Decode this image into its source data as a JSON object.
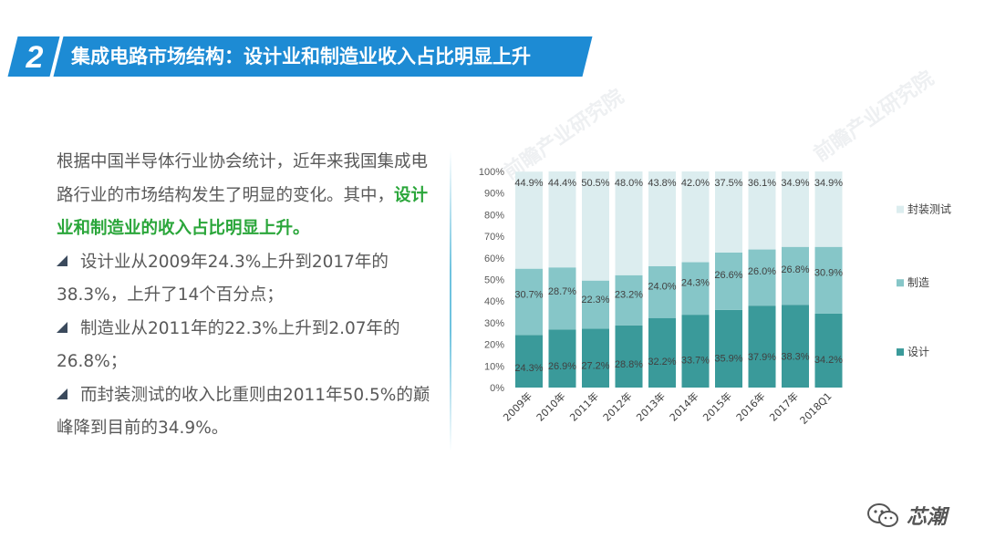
{
  "header": {
    "number": "2",
    "title": "集成电路市场结构：设计业和制造业收入占比明显上升"
  },
  "body": {
    "intro": "根据中国半导体行业协会统计，近年来我国集成电路行业的市场结构发生了明显的变化。其中，",
    "highlight": "设计业和制造业的收入占比明显上升。",
    "bullets": [
      "设计业从2009年24.3%上升到2017年的38.3%，上升了14个百分点；",
      "制造业从2011年的22.3%上升到2.07年的26.8%；",
      "而封装测试的收入比重则由2011年50.5%的巅峰降到目前的34.9%。"
    ]
  },
  "watermark": "前瞻产业研究院",
  "footer": {
    "brand": "芯潮"
  },
  "colors": {
    "header": "#1d8bd4",
    "highlight": "#2aa63a",
    "design": "#3a9a9a",
    "manufacturing": "#86c6c8",
    "packaging": "#dcedef"
  },
  "chart_data": {
    "type": "bar",
    "stacked": true,
    "categories": [
      "2009年",
      "2010年",
      "2011年",
      "2012年",
      "2013年",
      "2014年",
      "2015年",
      "2016年",
      "2017年",
      "2018Q1"
    ],
    "series": [
      {
        "name": "设计",
        "values": [
          24.3,
          26.9,
          27.2,
          28.8,
          32.2,
          33.7,
          35.9,
          37.9,
          38.3,
          34.2
        ],
        "labels": [
          "24.3%",
          "26.9%",
          "27.2%",
          "28.8%",
          "32.2%",
          "33.7%",
          "35.9%",
          "37.9%",
          "38.3%",
          "34.2%"
        ]
      },
      {
        "name": "制造",
        "values": [
          30.7,
          28.7,
          22.3,
          23.2,
          24.0,
          24.3,
          26.6,
          26.0,
          26.8,
          30.9
        ],
        "labels": [
          "30.7%",
          "28.7%",
          "22.3%",
          "23.2%",
          "24.0%",
          "24.3%",
          "26.6%",
          "26.0%",
          "26.8%",
          "30.9%"
        ]
      },
      {
        "name": "封装测试",
        "values": [
          44.9,
          44.4,
          50.5,
          48.0,
          43.8,
          42.0,
          37.5,
          36.1,
          34.9,
          34.9
        ],
        "labels": [
          "44.9%",
          "44.4%",
          "50.5%",
          "48.0%",
          "43.8%",
          "42.0%",
          "37.5%",
          "36.1%",
          "34.9%",
          "34.9%"
        ]
      }
    ],
    "ylim": [
      0,
      100
    ],
    "yticks": [
      "0%",
      "10%",
      "20%",
      "30%",
      "40%",
      "50%",
      "60%",
      "70%",
      "80%",
      "90%",
      "100%"
    ],
    "legend": "right",
    "grid": false
  }
}
